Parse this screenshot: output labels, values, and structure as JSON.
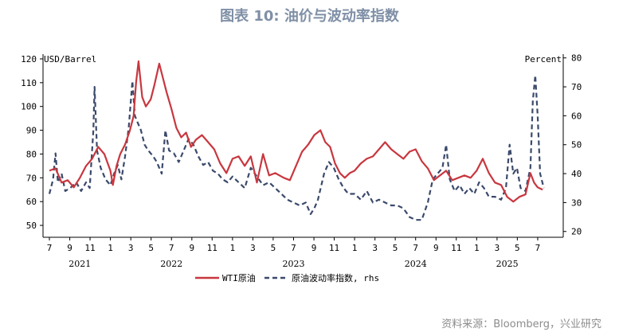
{
  "title": "图表 10: 油价与波动率指数",
  "source": "资料来源：Bloomberg，兴业研究",
  "chart_data": {
    "type": "line",
    "y_left_label": "USD/Barrel",
    "y_right_label": "Percent",
    "y_left_range": [
      45,
      122
    ],
    "y_right_range": [
      18,
      81.3
    ],
    "y_left_ticks": [
      "50",
      "60",
      "70",
      "80",
      "90",
      "100",
      "110",
      "120"
    ],
    "y_right_ticks": [
      "20",
      "30",
      "40",
      "50",
      "60",
      "70",
      "80"
    ],
    "x_range": [
      2021.5,
      2025.67
    ],
    "x_month_ticks": [
      {
        "x": 2021.5,
        "label": "7"
      },
      {
        "x": 2021.667,
        "label": "9"
      },
      {
        "x": 2021.833,
        "label": "11"
      },
      {
        "x": 2022.0,
        "label": "1"
      },
      {
        "x": 2022.167,
        "label": "3"
      },
      {
        "x": 2022.333,
        "label": "5"
      },
      {
        "x": 2022.5,
        "label": "7"
      },
      {
        "x": 2022.667,
        "label": "9"
      },
      {
        "x": 2022.833,
        "label": "11"
      },
      {
        "x": 2023.0,
        "label": "1"
      },
      {
        "x": 2023.167,
        "label": "3"
      },
      {
        "x": 2023.333,
        "label": "5"
      },
      {
        "x": 2023.5,
        "label": "7"
      },
      {
        "x": 2023.667,
        "label": "9"
      },
      {
        "x": 2023.833,
        "label": "11"
      },
      {
        "x": 2024.0,
        "label": "1"
      },
      {
        "x": 2024.167,
        "label": "3"
      },
      {
        "x": 2024.333,
        "label": "5"
      },
      {
        "x": 2024.5,
        "label": "7"
      },
      {
        "x": 2024.667,
        "label": "9"
      },
      {
        "x": 2024.833,
        "label": "11"
      },
      {
        "x": 2025.0,
        "label": "1"
      },
      {
        "x": 2025.167,
        "label": "3"
      },
      {
        "x": 2025.333,
        "label": "5"
      },
      {
        "x": 2025.5,
        "label": "7"
      }
    ],
    "x_year_labels": [
      {
        "x": 2021.75,
        "label": "2021"
      },
      {
        "x": 2022.5,
        "label": "2022"
      },
      {
        "x": 2023.5,
        "label": "2023"
      },
      {
        "x": 2024.5,
        "label": "2024"
      },
      {
        "x": 2025.25,
        "label": "2025"
      }
    ],
    "series": [
      {
        "name": "WTI原油",
        "axis": "left",
        "color": "#c8373f",
        "style": "solid",
        "points": [
          [
            2021.5,
            73
          ],
          [
            2021.55,
            74
          ],
          [
            2021.6,
            68
          ],
          [
            2021.65,
            69
          ],
          [
            2021.7,
            66
          ],
          [
            2021.75,
            70
          ],
          [
            2021.8,
            75
          ],
          [
            2021.85,
            78
          ],
          [
            2021.9,
            83
          ],
          [
            2021.95,
            80
          ],
          [
            2022.0,
            73
          ],
          [
            2022.02,
            67
          ],
          [
            2022.05,
            75
          ],
          [
            2022.08,
            80
          ],
          [
            2022.12,
            84
          ],
          [
            2022.16,
            90
          ],
          [
            2022.19,
            96
          ],
          [
            2022.21,
            110
          ],
          [
            2022.23,
            119
          ],
          [
            2022.26,
            104
          ],
          [
            2022.29,
            100
          ],
          [
            2022.33,
            103
          ],
          [
            2022.36,
            109
          ],
          [
            2022.4,
            118
          ],
          [
            2022.43,
            112
          ],
          [
            2022.46,
            106
          ],
          [
            2022.5,
            99
          ],
          [
            2022.54,
            91
          ],
          [
            2022.58,
            87
          ],
          [
            2022.62,
            89
          ],
          [
            2022.66,
            83
          ],
          [
            2022.7,
            86
          ],
          [
            2022.75,
            88
          ],
          [
            2022.8,
            85
          ],
          [
            2022.85,
            82
          ],
          [
            2022.9,
            76
          ],
          [
            2022.95,
            72
          ],
          [
            2023.0,
            78
          ],
          [
            2023.05,
            79
          ],
          [
            2023.1,
            75
          ],
          [
            2023.15,
            79
          ],
          [
            2023.2,
            68
          ],
          [
            2023.25,
            80
          ],
          [
            2023.3,
            71
          ],
          [
            2023.35,
            72
          ],
          [
            2023.42,
            70
          ],
          [
            2023.47,
            69
          ],
          [
            2023.52,
            75
          ],
          [
            2023.57,
            81
          ],
          [
            2023.62,
            84
          ],
          [
            2023.67,
            88
          ],
          [
            2023.72,
            90
          ],
          [
            2023.76,
            85
          ],
          [
            2023.8,
            83
          ],
          [
            2023.84,
            76
          ],
          [
            2023.88,
            72
          ],
          [
            2023.92,
            70
          ],
          [
            2023.96,
            72
          ],
          [
            2024.0,
            73
          ],
          [
            2024.05,
            76
          ],
          [
            2024.1,
            78
          ],
          [
            2024.15,
            79
          ],
          [
            2024.2,
            82
          ],
          [
            2024.25,
            85
          ],
          [
            2024.3,
            82
          ],
          [
            2024.35,
            80
          ],
          [
            2024.4,
            78
          ],
          [
            2024.45,
            81
          ],
          [
            2024.5,
            82
          ],
          [
            2024.55,
            77
          ],
          [
            2024.6,
            74
          ],
          [
            2024.65,
            69
          ],
          [
            2024.7,
            71
          ],
          [
            2024.75,
            73
          ],
          [
            2024.8,
            69
          ],
          [
            2024.85,
            70
          ],
          [
            2024.9,
            71
          ],
          [
            2024.95,
            70
          ],
          [
            2025.0,
            73
          ],
          [
            2025.05,
            78
          ],
          [
            2025.1,
            72
          ],
          [
            2025.15,
            68
          ],
          [
            2025.2,
            67
          ],
          [
            2025.25,
            62
          ],
          [
            2025.3,
            60
          ],
          [
            2025.35,
            62
          ],
          [
            2025.4,
            63
          ],
          [
            2025.44,
            72
          ],
          [
            2025.47,
            68
          ],
          [
            2025.5,
            66
          ],
          [
            2025.54,
            65
          ]
        ]
      },
      {
        "name": "原油波动率指数, rhs",
        "axis": "right",
        "color": "#3b4a6b",
        "style": "dashed",
        "points": [
          [
            2021.5,
            33
          ],
          [
            2021.53,
            38
          ],
          [
            2021.55,
            47
          ],
          [
            2021.57,
            37
          ],
          [
            2021.6,
            40
          ],
          [
            2021.63,
            34
          ],
          [
            2021.67,
            35
          ],
          [
            2021.72,
            37
          ],
          [
            2021.76,
            34
          ],
          [
            2021.8,
            37
          ],
          [
            2021.83,
            35
          ],
          [
            2021.86,
            55
          ],
          [
            2021.87,
            70
          ],
          [
            2021.89,
            48
          ],
          [
            2021.92,
            42
          ],
          [
            2021.96,
            38
          ],
          [
            2022.0,
            36
          ],
          [
            2022.03,
            40
          ],
          [
            2022.06,
            43
          ],
          [
            2022.09,
            38
          ],
          [
            2022.12,
            46
          ],
          [
            2022.15,
            56
          ],
          [
            2022.18,
            72
          ],
          [
            2022.2,
            60
          ],
          [
            2022.22,
            58
          ],
          [
            2022.25,
            55
          ],
          [
            2022.28,
            50
          ],
          [
            2022.31,
            48
          ],
          [
            2022.35,
            46
          ],
          [
            2022.38,
            44
          ],
          [
            2022.42,
            40
          ],
          [
            2022.45,
            55
          ],
          [
            2022.48,
            48
          ],
          [
            2022.52,
            47
          ],
          [
            2022.56,
            44
          ],
          [
            2022.6,
            48
          ],
          [
            2022.64,
            52
          ],
          [
            2022.68,
            50
          ],
          [
            2022.72,
            46
          ],
          [
            2022.76,
            43
          ],
          [
            2022.8,
            44
          ],
          [
            2022.84,
            41
          ],
          [
            2022.88,
            40
          ],
          [
            2022.92,
            38
          ],
          [
            2022.96,
            37
          ],
          [
            2023.0,
            39
          ],
          [
            2023.05,
            37
          ],
          [
            2023.1,
            35
          ],
          [
            2023.15,
            42
          ],
          [
            2023.2,
            39
          ],
          [
            2023.25,
            36
          ],
          [
            2023.3,
            37
          ],
          [
            2023.35,
            35
          ],
          [
            2023.4,
            33
          ],
          [
            2023.45,
            31
          ],
          [
            2023.5,
            30
          ],
          [
            2023.55,
            29
          ],
          [
            2023.6,
            30
          ],
          [
            2023.64,
            26
          ],
          [
            2023.67,
            28
          ],
          [
            2023.7,
            31
          ],
          [
            2023.75,
            40
          ],
          [
            2023.79,
            44
          ],
          [
            2023.83,
            42
          ],
          [
            2023.87,
            38
          ],
          [
            2023.91,
            35
          ],
          [
            2023.95,
            33
          ],
          [
            2024.0,
            33
          ],
          [
            2024.05,
            31
          ],
          [
            2024.1,
            34
          ],
          [
            2024.15,
            30
          ],
          [
            2024.2,
            31
          ],
          [
            2024.25,
            30
          ],
          [
            2024.3,
            29
          ],
          [
            2024.35,
            29
          ],
          [
            2024.4,
            28
          ],
          [
            2024.45,
            25
          ],
          [
            2024.5,
            24
          ],
          [
            2024.55,
            24
          ],
          [
            2024.6,
            30
          ],
          [
            2024.64,
            38
          ],
          [
            2024.68,
            40
          ],
          [
            2024.72,
            42
          ],
          [
            2024.75,
            50
          ],
          [
            2024.78,
            38
          ],
          [
            2024.82,
            34
          ],
          [
            2024.86,
            36
          ],
          [
            2024.9,
            33
          ],
          [
            2024.94,
            35
          ],
          [
            2024.98,
            33
          ],
          [
            2025.02,
            37
          ],
          [
            2025.06,
            35
          ],
          [
            2025.1,
            32
          ],
          [
            2025.15,
            32
          ],
          [
            2025.2,
            31
          ],
          [
            2025.24,
            35
          ],
          [
            2025.27,
            50
          ],
          [
            2025.3,
            40
          ],
          [
            2025.33,
            42
          ],
          [
            2025.36,
            35
          ],
          [
            2025.4,
            34
          ],
          [
            2025.44,
            42
          ],
          [
            2025.46,
            65
          ],
          [
            2025.48,
            74
          ],
          [
            2025.5,
            60
          ],
          [
            2025.52,
            40
          ],
          [
            2025.55,
            35
          ]
        ]
      }
    ]
  }
}
